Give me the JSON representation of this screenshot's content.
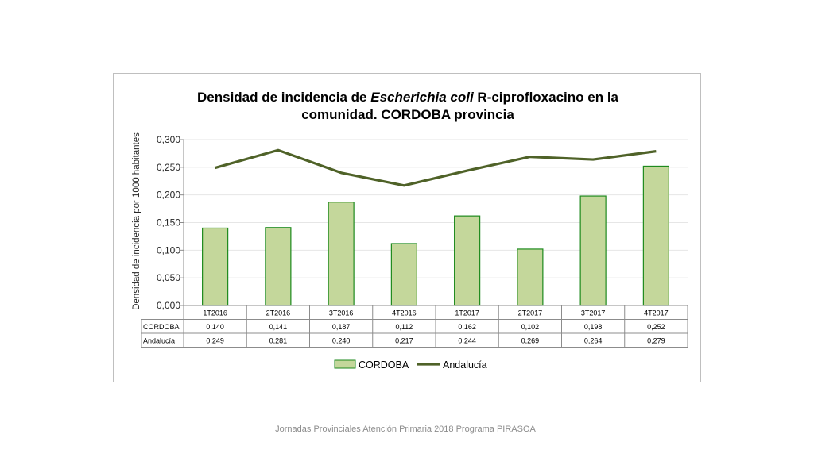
{
  "chart_data": {
    "type": "bar",
    "title_line1": "Densidad de incidencia de ",
    "title_italic": "Escherichia coli",
    "title_line1_end": " R-ciprofloxacino en la",
    "title_line2": "comunidad. CORDOBA provincia",
    "ylabel": "Densidad de incidencia por 1000 habitantes",
    "ylim": [
      0,
      0.3
    ],
    "yticks": [
      "0,000",
      "0,050",
      "0,100",
      "0,150",
      "0,200",
      "0,250",
      "0,300"
    ],
    "categories": [
      "1T2016",
      "2T2016",
      "3T2016",
      "4T2016",
      "1T2017",
      "2T2017",
      "3T2017",
      "4T2017"
    ],
    "series": [
      {
        "name": "CORDOBA",
        "kind": "bar",
        "color": "#c4d79b",
        "edge": "#1e8a1e",
        "values": [
          0.14,
          0.141,
          0.187,
          0.112,
          0.162,
          0.102,
          0.198,
          0.252
        ],
        "labels": [
          "0,140",
          "0,141",
          "0,187",
          "0,112",
          "0,162",
          "0,102",
          "0,198",
          "0,252"
        ]
      },
      {
        "name": "Andalucía",
        "kind": "line",
        "color": "#4f6228",
        "values": [
          0.249,
          0.281,
          0.24,
          0.217,
          0.244,
          0.269,
          0.264,
          0.279
        ],
        "labels": [
          "0,249",
          "0,281",
          "0,240",
          "0,217",
          "0,244",
          "0,269",
          "0,264",
          "0,279"
        ]
      }
    ],
    "data_table": true,
    "legend_position": "bottom"
  },
  "footer": "Jornadas Provinciales Atención Primaria 2018  Programa PIRASOA"
}
